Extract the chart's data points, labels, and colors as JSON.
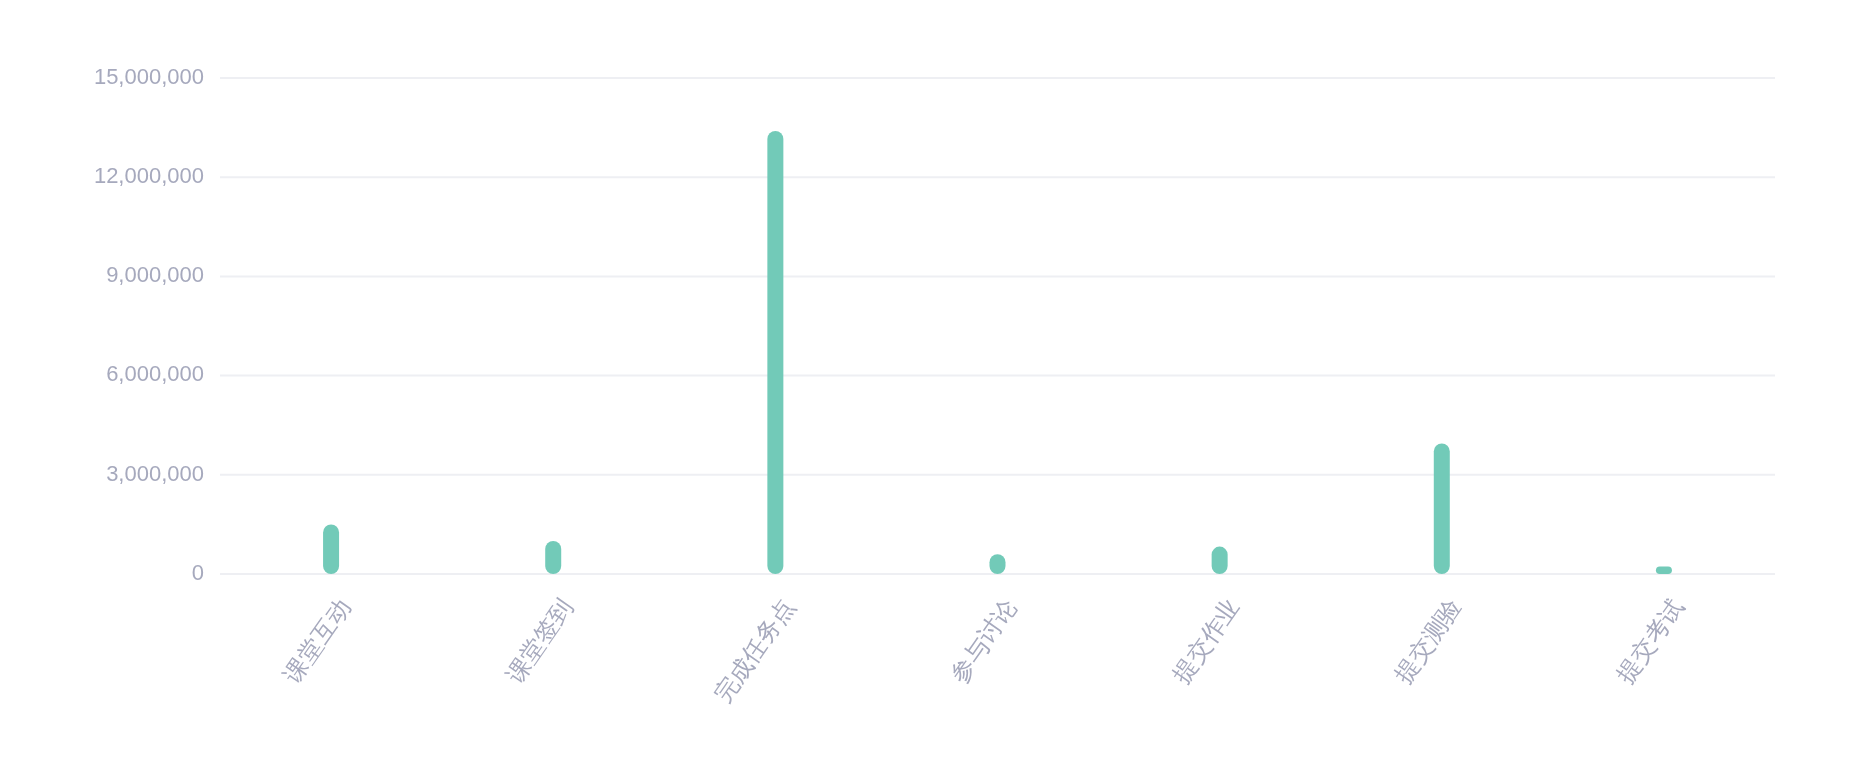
{
  "chart_data": {
    "type": "bar",
    "categories": [
      "课堂互动",
      "课堂签到",
      "完成任务点",
      "参与讨论",
      "提交作业",
      "提交测验",
      "提交考试"
    ],
    "values": [
      1500000,
      1000000,
      13400000,
      600000,
      830000,
      3950000,
      230000
    ],
    "color": "#72cab8",
    "ylim": [
      0,
      15000000
    ],
    "yticks": [
      {
        "value": 0,
        "label": "0"
      },
      {
        "value": 3000000,
        "label": "3,000,000"
      },
      {
        "value": 6000000,
        "label": "6,000,000"
      },
      {
        "value": 9000000,
        "label": "9,000,000"
      },
      {
        "value": 12000000,
        "label": "12,000,000"
      },
      {
        "value": 15000000,
        "label": "15,000,000"
      }
    ],
    "grid": "y"
  }
}
